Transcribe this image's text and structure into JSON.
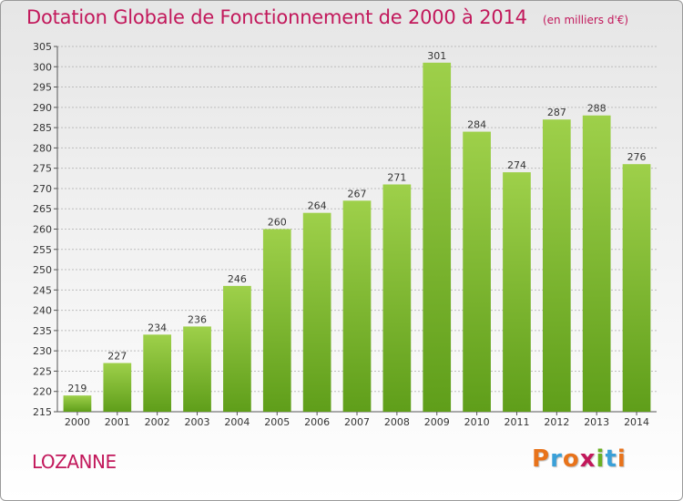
{
  "header": {
    "title": "Dotation Globale de Fonctionnement de 2000 à 2014",
    "unit": "(en milliers d'€)"
  },
  "footer": {
    "commune": "LOZANNE",
    "logo_text": "Proxiti"
  },
  "colors": {
    "title": "#c2185b",
    "bar_light": "#9ed04a",
    "bar_dark": "#5f9e1a",
    "grid": "#bdbdbd",
    "logo": [
      "#e8731b",
      "#3aa0d8",
      "#e8731b",
      "#c2185b",
      "#6ab023",
      "#3aa0d8",
      "#e8731b"
    ]
  },
  "chart_data": {
    "type": "bar",
    "title": "Dotation Globale de Fonctionnement de 2000 à 2014",
    "subtitle": "(en milliers d'€)",
    "categories": [
      "2000",
      "2001",
      "2002",
      "2003",
      "2004",
      "2005",
      "2006",
      "2007",
      "2008",
      "2009",
      "2010",
      "2011",
      "2012",
      "2013",
      "2014"
    ],
    "values": [
      219,
      227,
      234,
      236,
      246,
      260,
      264,
      267,
      271,
      301,
      284,
      274,
      287,
      288,
      276
    ],
    "ylim": [
      215,
      305
    ],
    "ytick_step": 5,
    "grid": true,
    "data_labels": true
  }
}
